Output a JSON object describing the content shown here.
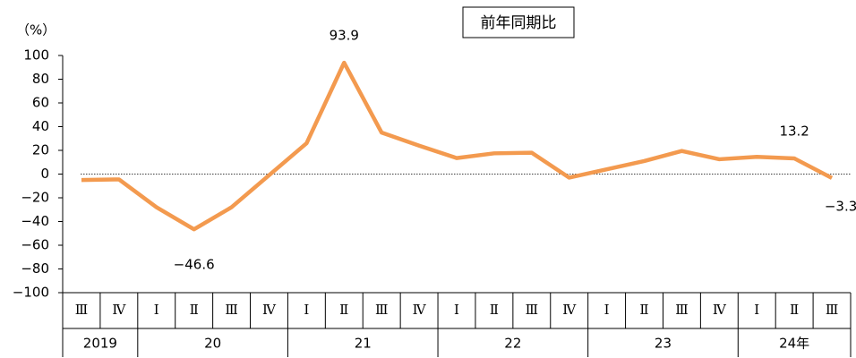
{
  "chart_data": {
    "type": "line",
    "title": "前年同期比",
    "y_label": "（%）",
    "categories": [
      "Ⅲ",
      "Ⅳ",
      "Ⅰ",
      "Ⅱ",
      "Ⅲ",
      "Ⅳ",
      "Ⅰ",
      "Ⅱ",
      "Ⅲ",
      "Ⅳ",
      "Ⅰ",
      "Ⅱ",
      "Ⅲ",
      "Ⅳ",
      "Ⅰ",
      "Ⅱ",
      "Ⅲ",
      "Ⅳ",
      "Ⅰ",
      "Ⅱ",
      "Ⅲ"
    ],
    "groups": [
      {
        "label": "2019",
        "count": 2
      },
      {
        "label": "20",
        "count": 4
      },
      {
        "label": "21",
        "count": 4
      },
      {
        "label": "22",
        "count": 4
      },
      {
        "label": "23",
        "count": 4
      },
      {
        "label": "24年",
        "count": 3
      }
    ],
    "series": [
      {
        "name": "前年同期比",
        "color": "#f39a4f",
        "values": [
          -5,
          -4.5,
          -28,
          -46.6,
          -28,
          -1,
          26,
          93.9,
          35,
          24,
          13.5,
          17.5,
          18,
          -3,
          4,
          11,
          19.5,
          12.5,
          14.5,
          13.2,
          -3.3
        ],
        "value_labels": [
          null,
          null,
          null,
          "−46.6",
          null,
          null,
          null,
          "93.9",
          null,
          null,
          null,
          null,
          null,
          null,
          null,
          null,
          null,
          null,
          null,
          "13.2",
          "−3.3"
        ]
      }
    ],
    "ylim": [
      -100,
      100
    ],
    "yticks": [
      {
        "value": -100,
        "label": "−100"
      },
      {
        "value": -80,
        "label": "−80"
      },
      {
        "value": -60,
        "label": "−60"
      },
      {
        "value": -40,
        "label": "−40"
      },
      {
        "value": -20,
        "label": "−20"
      },
      0,
      20,
      40,
      60,
      80,
      100
    ]
  }
}
